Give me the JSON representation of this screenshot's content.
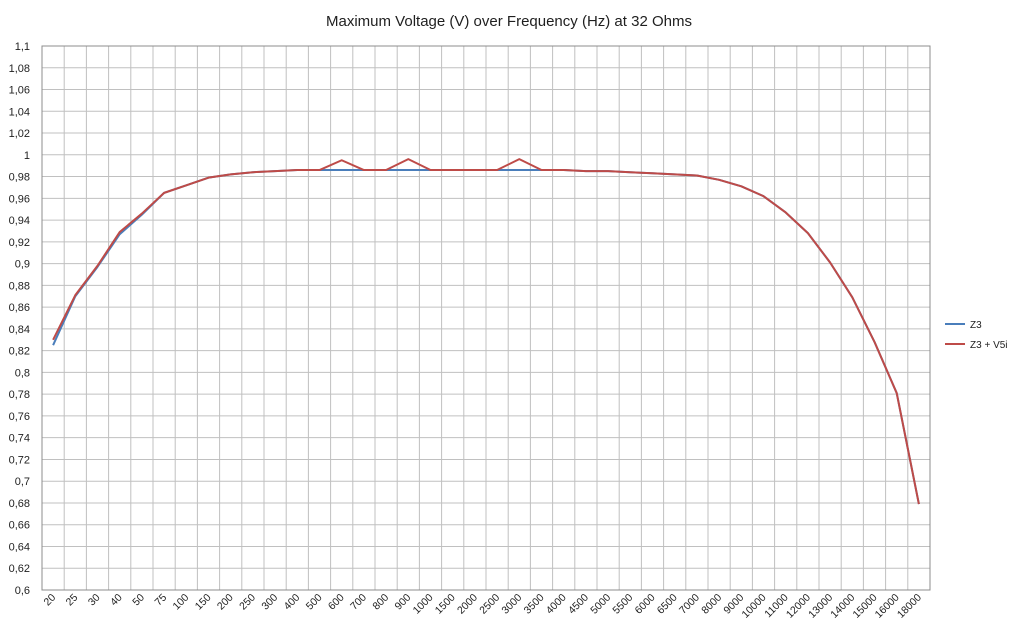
{
  "chart_data": {
    "type": "line",
    "title": "Maximum Voltage (V) over Frequency (Hz) at 32 Ohms",
    "xlabel": "",
    "ylabel": "",
    "categories": [
      "20",
      "25",
      "30",
      "40",
      "50",
      "75",
      "100",
      "150",
      "200",
      "250",
      "300",
      "400",
      "500",
      "600",
      "700",
      "800",
      "900",
      "1000",
      "1500",
      "2000",
      "2500",
      "3000",
      "3500",
      "4000",
      "4500",
      "5000",
      "5500",
      "6000",
      "6500",
      "7000",
      "8000",
      "9000",
      "10000",
      "11000",
      "12000",
      "13000",
      "14000",
      "15000",
      "16000",
      "18000"
    ],
    "ylim": [
      0.6,
      1.1
    ],
    "ytick_step": 0.02,
    "ytick_labels": [
      "0,6",
      "0,62",
      "0,64",
      "0,66",
      "0,68",
      "0,7",
      "0,72",
      "0,74",
      "0,76",
      "0,78",
      "0,8",
      "0,82",
      "0,84",
      "0,86",
      "0,88",
      "0,9",
      "0,92",
      "0,94",
      "0,96",
      "0,98",
      "1",
      "1,02",
      "1,04",
      "1,06",
      "1,08",
      "1,1"
    ],
    "grid": true,
    "legend_position": "right",
    "series": [
      {
        "name": "Z3",
        "color": "#4a7ebb",
        "values": [
          0.825,
          0.87,
          0.897,
          0.927,
          0.945,
          0.965,
          0.972,
          0.979,
          0.982,
          0.984,
          0.985,
          0.986,
          0.986,
          0.986,
          0.986,
          0.986,
          0.986,
          0.986,
          0.986,
          0.986,
          0.986,
          0.986,
          0.986,
          0.986,
          0.985,
          0.985,
          0.984,
          0.983,
          0.982,
          0.981,
          0.977,
          0.971,
          0.962,
          0.947,
          0.928,
          0.901,
          0.869,
          0.828,
          0.781,
          0.679
        ]
      },
      {
        "name": "Z3 + V5i",
        "color": "#be4b48",
        "values": [
          0.83,
          0.871,
          0.898,
          0.929,
          0.946,
          0.965,
          0.972,
          0.979,
          0.982,
          0.984,
          0.985,
          0.986,
          0.986,
          0.995,
          0.986,
          0.986,
          0.996,
          0.986,
          0.986,
          0.986,
          0.986,
          0.996,
          0.986,
          0.986,
          0.985,
          0.985,
          0.984,
          0.983,
          0.982,
          0.981,
          0.977,
          0.971,
          0.962,
          0.947,
          0.928,
          0.901,
          0.869,
          0.828,
          0.781,
          0.679
        ]
      }
    ]
  }
}
